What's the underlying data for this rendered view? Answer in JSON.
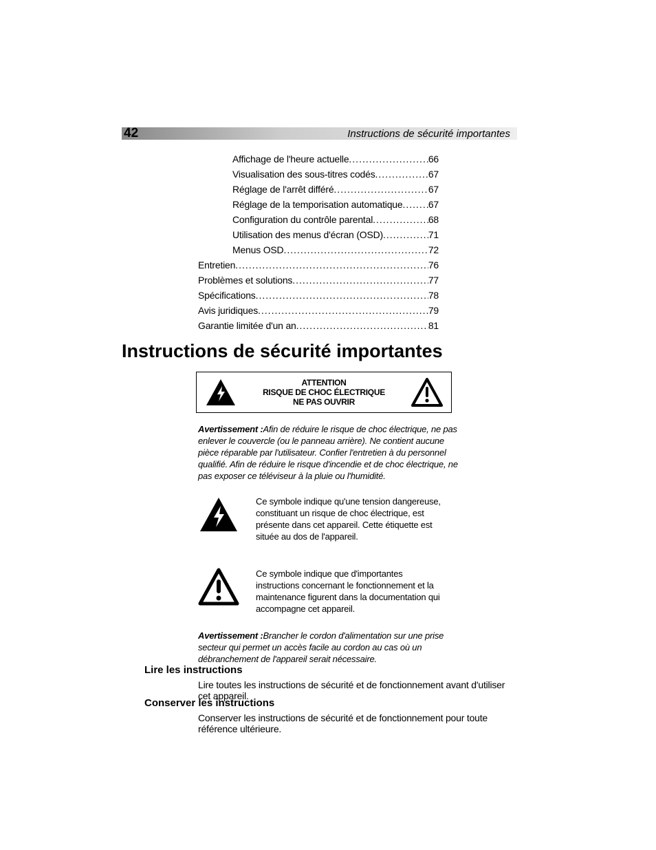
{
  "header": {
    "page_number": "42",
    "running_title": "Instructions de sécurité importantes",
    "bar_gradient_from": "#888888",
    "bar_gradient_to": "#eeeeee"
  },
  "toc": {
    "items": [
      {
        "label": "Affichage de l'heure actuelle",
        "page": "66",
        "level": 1
      },
      {
        "label": "Visualisation des sous-titres codés",
        "page": "67",
        "level": 1
      },
      {
        "label": "Réglage de l'arrêt différé",
        "page": "67",
        "level": 1
      },
      {
        "label": "Réglage de la temporisation automatique",
        "page": "67",
        "level": 1
      },
      {
        "label": "Configuration du contrôle parental",
        "page": "68",
        "level": 1
      },
      {
        "label": "Utilisation des menus d'écran (OSD)",
        "page": "71",
        "level": 1
      },
      {
        "label": "Menus OSD",
        "page": "72",
        "level": 1
      },
      {
        "label": "Entretien",
        "page": "76",
        "level": 0
      },
      {
        "label": "Problèmes et solutions",
        "page": "77",
        "level": 0
      },
      {
        "label": "Spécifications",
        "page": "78",
        "level": 0
      },
      {
        "label": "Avis juridiques",
        "page": "79",
        "level": 0
      },
      {
        "label": "Garantie limitée d'un an",
        "page": "81",
        "level": 0
      }
    ]
  },
  "main_heading": "Instructions de sécurité importantes",
  "warning_box": {
    "line1": "ATTENTION",
    "line2": "RISQUE DE CHOC ÉLECTRIQUE",
    "line3": "NE PAS OUVRIR",
    "left_icon": "lightning-triangle-icon",
    "right_icon": "exclamation-triangle-icon"
  },
  "avert1": {
    "label": "Avertissement :",
    "text": "Afin de réduire le risque de choc électrique, ne pas enlever le couvercle (ou le panneau arrière). Ne contient aucune pièce réparable par l'utilisateur. Confier l'entretien à du personnel qualifié. Afin de réduire le risque d'incendie et de choc électrique, ne pas exposer ce téléviseur à la pluie ou l'humidité."
  },
  "symbol1": {
    "icon": "lightning-triangle-icon",
    "text": "Ce symbole indique qu'une tension dangereuse, constituant un risque de choc électrique, est présente dans cet appareil. Cette étiquette est située au dos de l'appareil."
  },
  "symbol2": {
    "icon": "exclamation-triangle-icon",
    "text": "Ce symbole indique que d'importantes instructions concernant le fonctionnement et la maintenance figurent dans la documentation qui accompagne cet appareil."
  },
  "avert2": {
    "label": "Avertissement :",
    "text": "Brancher le cordon d'alimentation sur une prise secteur qui permet un accès facile au cordon au cas où un débranchement de l'appareil serait nécessaire."
  },
  "sections": [
    {
      "heading": "Lire les instructions",
      "body": "Lire toutes les instructions de sécurité et de fonctionnement avant d'utiliser cet appareil."
    },
    {
      "heading": "Conserver les instructions",
      "body": "Conserver les instructions de sécurité et de fonctionnement pour toute référence ultérieure."
    }
  ],
  "colors": {
    "text": "#000000",
    "background": "#ffffff"
  },
  "typography": {
    "body_family": "Myriad Pro, Segoe UI, Helvetica Neue, Arial, sans-serif",
    "h1_size_pt": 20,
    "h2_size_pt": 11,
    "body_size_pt": 10,
    "toc_size_pt": 10
  }
}
